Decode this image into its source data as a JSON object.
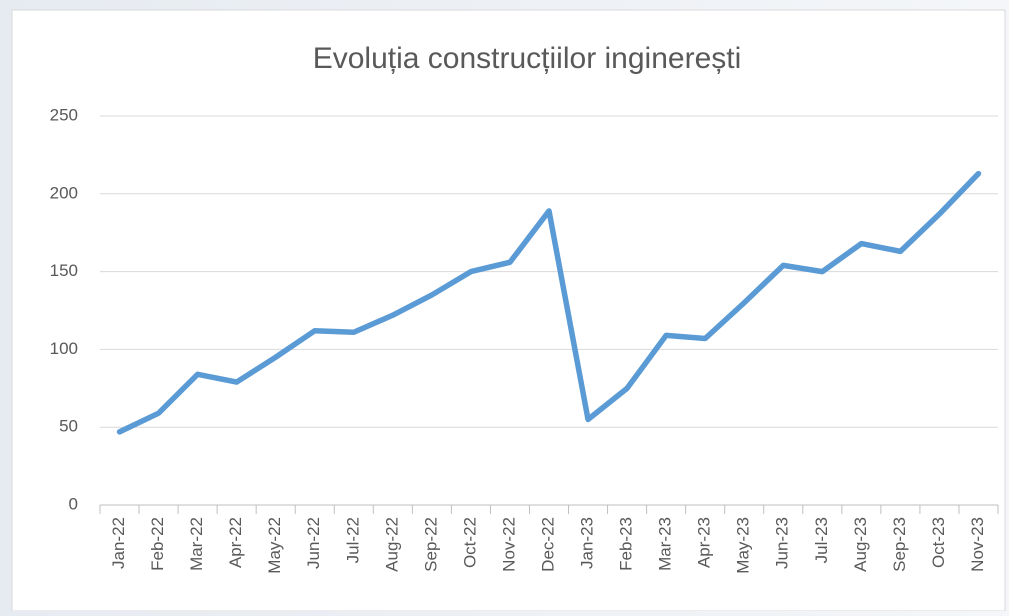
{
  "chart_data": {
    "type": "line",
    "title": "Evoluția construcțiilor inginerești",
    "categories": [
      "Jan-22",
      "Feb-22",
      "Mar-22",
      "Apr-22",
      "May-22",
      "Jun-22",
      "Jul-22",
      "Aug-22",
      "Sep-22",
      "Oct-22",
      "Nov-22",
      "Dec-22",
      "Jan-23",
      "Feb-23",
      "Mar-23",
      "Apr-23",
      "May-23",
      "Jun-23",
      "Jul-23",
      "Aug-23",
      "Sep-23",
      "Oct-23",
      "Nov-23"
    ],
    "values": [
      47,
      59,
      84,
      79,
      95,
      112,
      111,
      122,
      135,
      150,
      156,
      189,
      55,
      75,
      109,
      107,
      130,
      154,
      150,
      168,
      163,
      187,
      213
    ],
    "color": "#5b9bd5",
    "ylim": [
      0,
      250
    ],
    "yticks": [
      0,
      50,
      100,
      150,
      200,
      250
    ],
    "grid": true
  }
}
